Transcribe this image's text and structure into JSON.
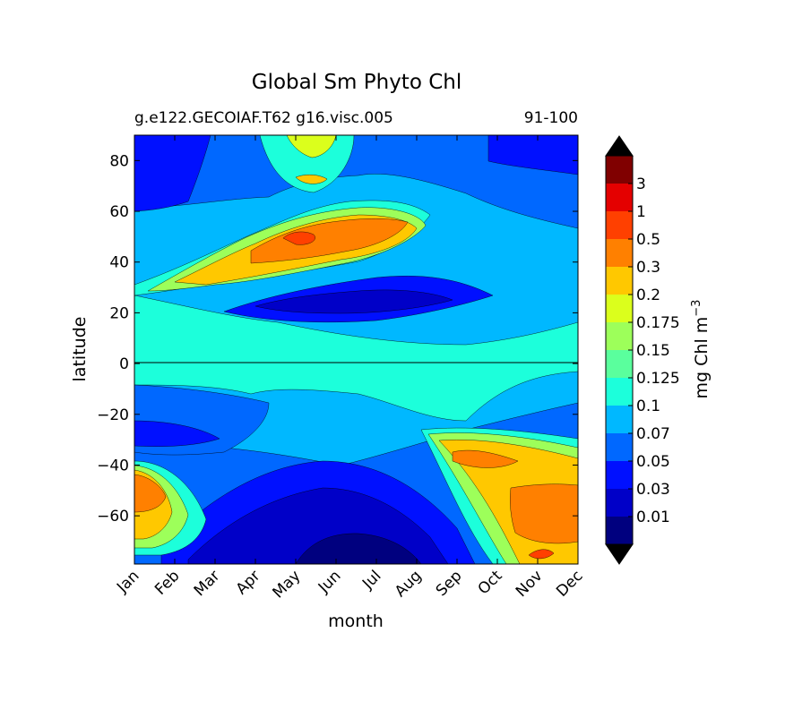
{
  "chart_data": {
    "type": "contourf",
    "title": "Global Sm Phyto Chl",
    "subtitle_left": "g.e122.GECOIAF.T62 g16.visc.005",
    "subtitle_right": "91-100",
    "xlabel": "month",
    "ylabel": "latitude",
    "x_ticks": [
      "Jan",
      "Feb",
      "Mar",
      "Apr",
      "May",
      "Jun",
      "Jul",
      "Aug",
      "Sep",
      "Oct",
      "Nov",
      "Dec"
    ],
    "y_ticks": [
      "80",
      "60",
      "40",
      "20",
      "0",
      "−20",
      "−40",
      "−60"
    ],
    "ylim": [
      -79,
      90
    ],
    "colorbar": {
      "label": "mg Chl m",
      "label_exponent": "−3",
      "levels": [
        "0.01",
        "0.03",
        "0.05",
        "0.07",
        "0.1",
        "0.125",
        "0.15",
        "0.175",
        "0.2",
        "0.3",
        "0.5",
        "1",
        "3"
      ],
      "colors": [
        "#00007f",
        "#0000c8",
        "#0010ff",
        "#0068ff",
        "#00b8ff",
        "#1cffdb",
        "#5aff9d",
        "#9dff5a",
        "#dbff1c",
        "#ffc800",
        "#ff8000",
        "#ff4000",
        "#e40000",
        "#800000"
      ],
      "extend_low_color": "#000000",
      "extend_high_color": "#000000"
    },
    "colors": {
      "background_low": "#0068ff",
      "main": "#00b8ff"
    }
  }
}
